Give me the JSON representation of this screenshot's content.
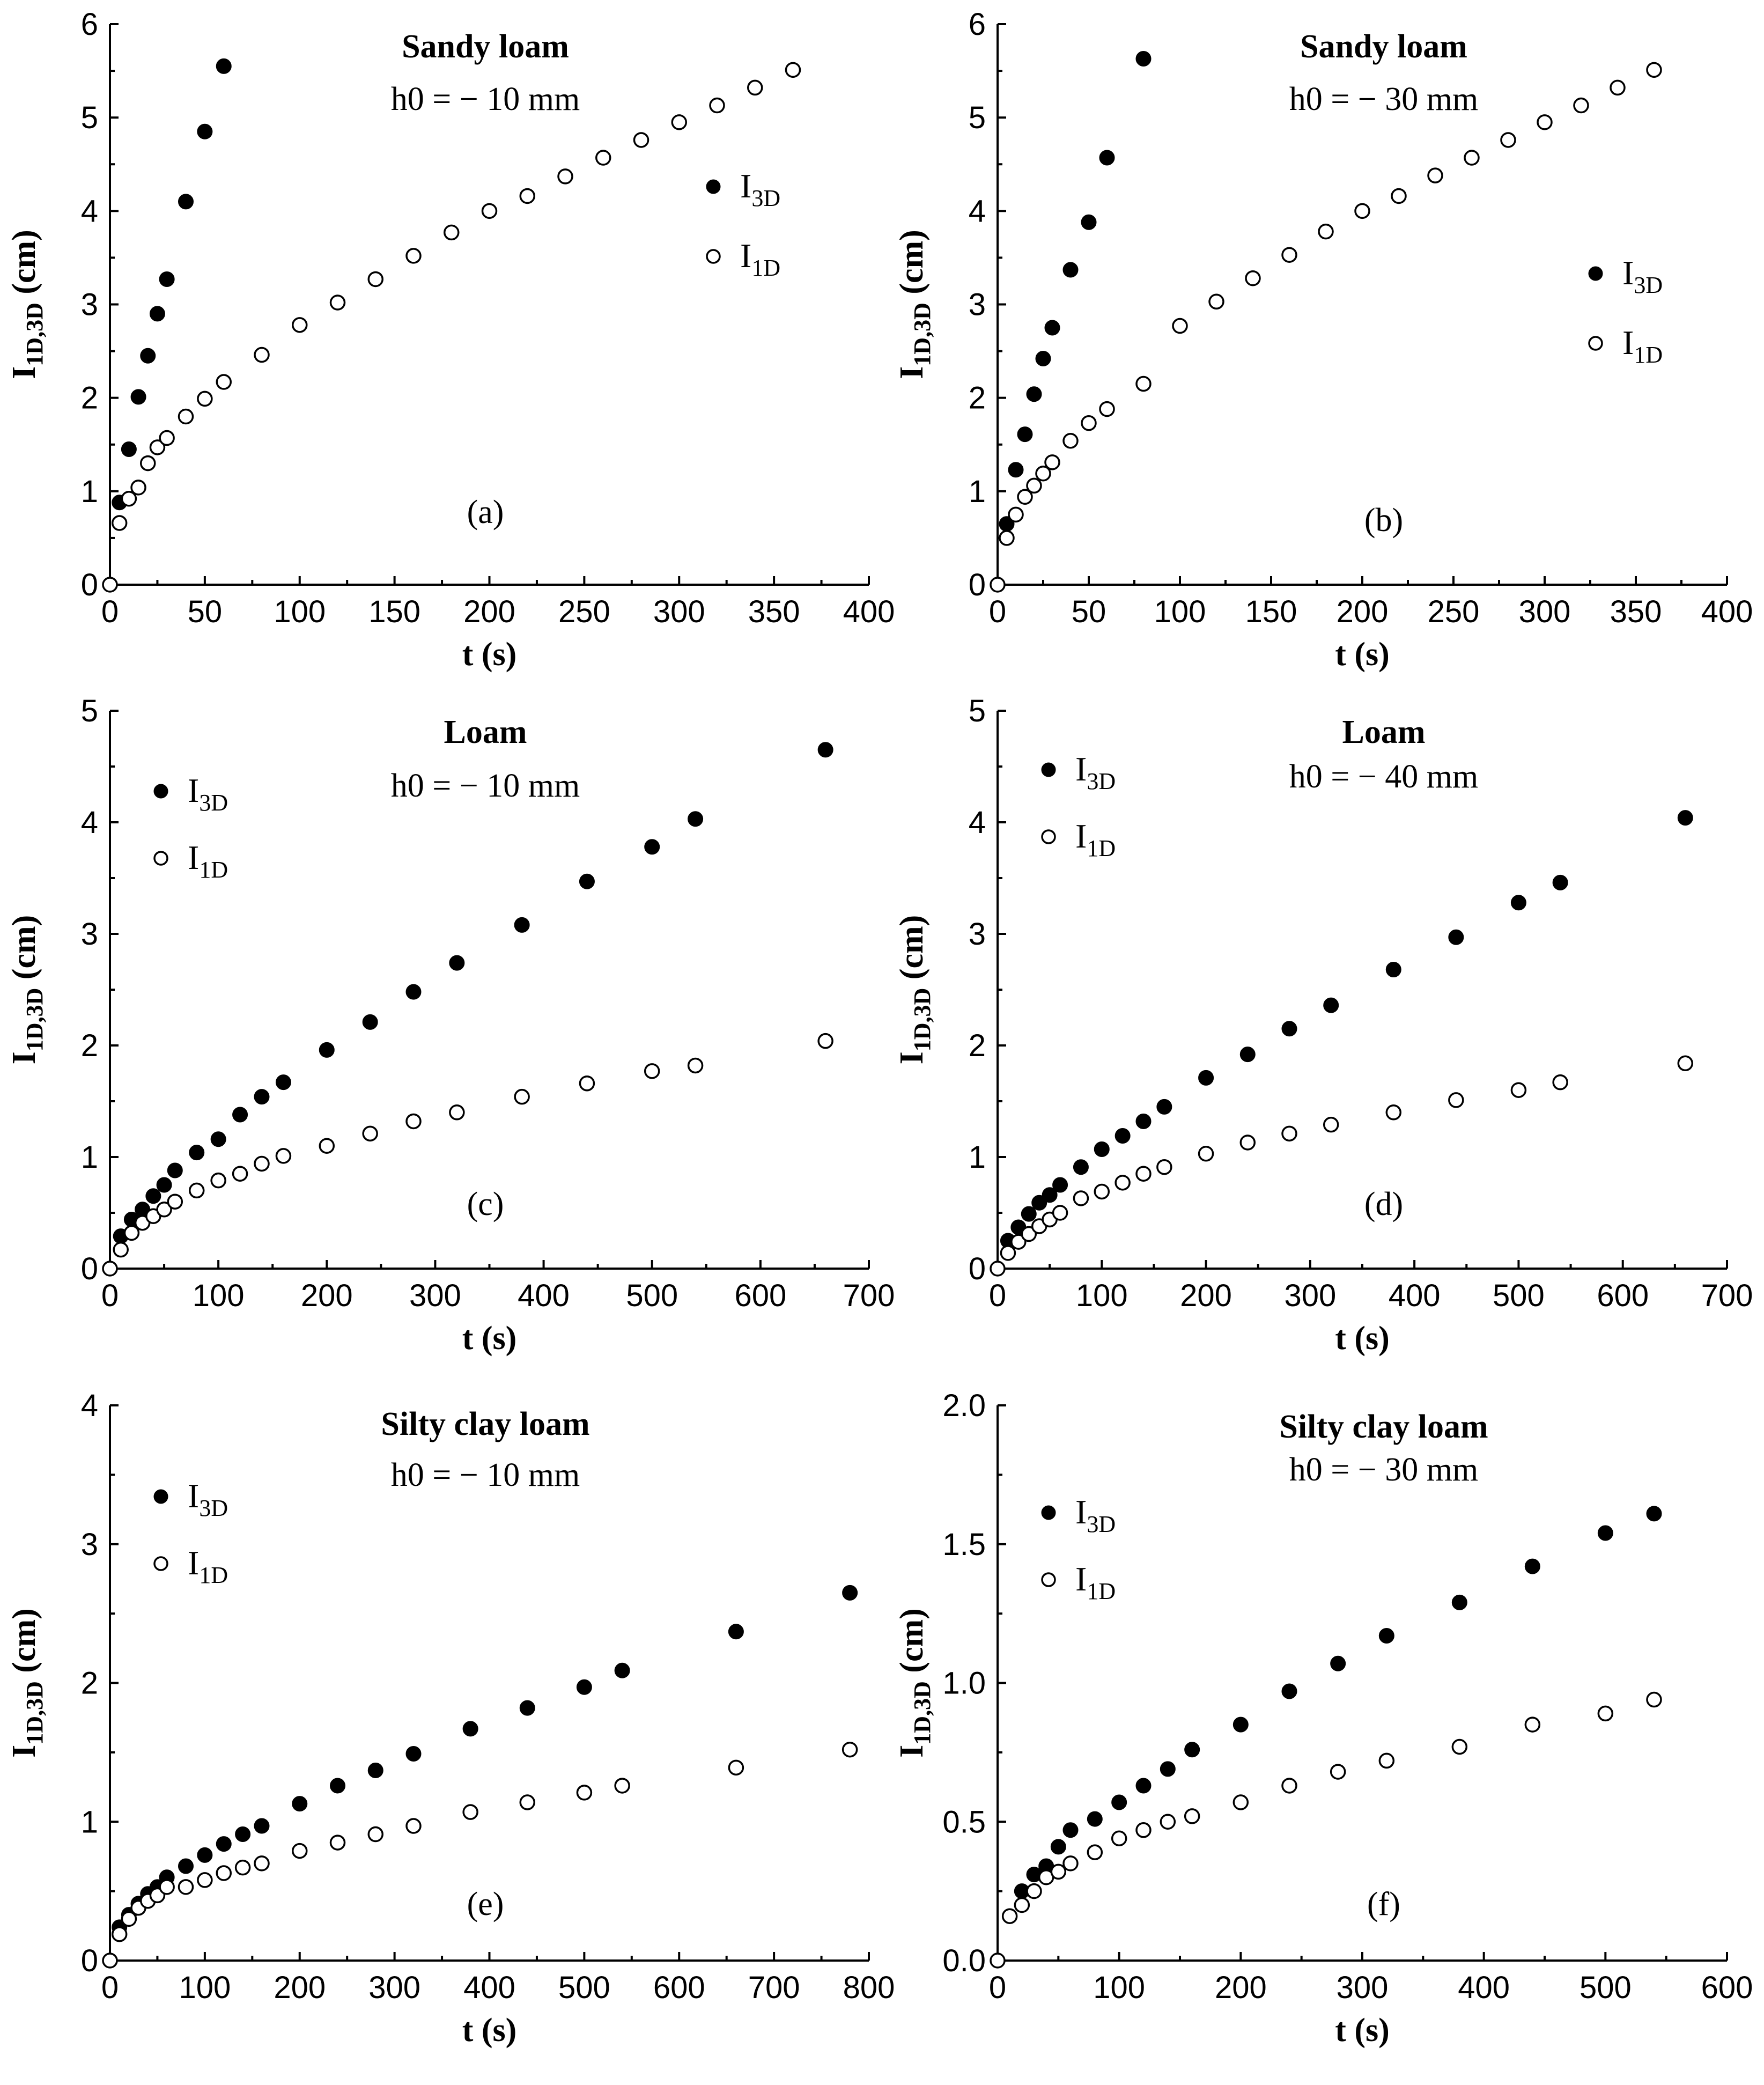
{
  "chart_data": [
    {
      "panel": "(a)",
      "type": "scatter",
      "title": "Sandy loam",
      "subtitle": "h0 = − 10 mm",
      "xlabel": "t (s)",
      "ylabel": {
        "main": "I",
        "sub": "1D,3D",
        "unit": " (cm)"
      },
      "xlim": [
        0,
        400
      ],
      "ylim": [
        0,
        6
      ],
      "xticks": [
        0,
        50,
        100,
        150,
        200,
        250,
        300,
        350,
        400
      ],
      "yticks": [
        0,
        1,
        2,
        3,
        4,
        5,
        6
      ],
      "ytick_labels": [
        "0",
        "1",
        "2",
        "3",
        "4",
        "5",
        "6"
      ],
      "legend_placement": "right",
      "series": [
        {
          "name": "I3D",
          "label_main": "I",
          "label_sub": "3D",
          "marker": "filled",
          "x": [
            5,
            10,
            15,
            20,
            25,
            30,
            40,
            50,
            60
          ],
          "y": [
            0.88,
            1.45,
            2.01,
            2.45,
            2.9,
            3.27,
            4.1,
            4.85,
            5.55
          ]
        },
        {
          "name": "I1D",
          "label_main": "I",
          "label_sub": "1D",
          "marker": "open",
          "x": [
            0,
            5,
            10,
            15,
            20,
            25,
            30,
            40,
            50,
            60,
            80,
            100,
            120,
            140,
            160,
            180,
            200,
            220,
            240,
            260,
            280,
            300,
            320,
            340,
            360
          ],
          "y": [
            0,
            0.66,
            0.92,
            1.04,
            1.3,
            1.47,
            1.57,
            1.8,
            1.99,
            2.17,
            2.46,
            2.78,
            3.02,
            3.27,
            3.52,
            3.77,
            4.0,
            4.16,
            4.37,
            4.57,
            4.76,
            4.95,
            5.13,
            5.32,
            5.51
          ]
        }
      ]
    },
    {
      "panel": "(b)",
      "type": "scatter",
      "title": "Sandy loam",
      "subtitle": "h0 = − 30 mm",
      "xlabel": "t (s)",
      "ylabel": {
        "main": "I",
        "sub": "1D,3D",
        "unit": " (cm)"
      },
      "xlim": [
        0,
        400
      ],
      "ylim": [
        0,
        6
      ],
      "xticks": [
        0,
        50,
        100,
        150,
        200,
        250,
        300,
        350,
        400
      ],
      "yticks": [
        0,
        1,
        2,
        3,
        4,
        5,
        6
      ],
      "ytick_labels": [
        "0",
        "1",
        "2",
        "3",
        "4",
        "5",
        "6"
      ],
      "legend_placement": "right",
      "series": [
        {
          "name": "I3D",
          "label_main": "I",
          "label_sub": "3D",
          "marker": "filled",
          "x": [
            5,
            10,
            15,
            20,
            25,
            30,
            40,
            50,
            60,
            80
          ],
          "y": [
            0.65,
            1.23,
            1.61,
            2.04,
            2.42,
            2.75,
            3.37,
            3.88,
            4.57,
            5.63
          ]
        },
        {
          "name": "I1D",
          "label_main": "I",
          "label_sub": "1D",
          "marker": "open",
          "x": [
            0,
            5,
            10,
            15,
            20,
            25,
            30,
            40,
            50,
            60,
            80,
            100,
            120,
            140,
            160,
            180,
            200,
            220,
            240,
            260,
            280,
            300,
            320,
            340,
            360
          ],
          "y": [
            0,
            0.5,
            0.75,
            0.94,
            1.06,
            1.19,
            1.31,
            1.54,
            1.73,
            1.88,
            2.15,
            2.77,
            3.03,
            3.28,
            3.53,
            3.78,
            4.0,
            4.16,
            4.38,
            4.57,
            4.76,
            4.95,
            5.13,
            5.32,
            5.51
          ]
        }
      ]
    },
    {
      "panel": "(c)",
      "type": "scatter",
      "title": "Loam",
      "subtitle": "h0 = − 10 mm",
      "xlabel": "t (s)",
      "ylabel": {
        "main": "I",
        "sub": "1D,3D",
        "unit": " (cm)"
      },
      "xlim": [
        0,
        700
      ],
      "ylim": [
        0,
        5
      ],
      "xticks": [
        0,
        100,
        200,
        300,
        400,
        500,
        600,
        700
      ],
      "yticks": [
        0,
        1,
        2,
        3,
        4,
        5
      ],
      "ytick_labels": [
        "0",
        "1",
        "2",
        "3",
        "4",
        "5"
      ],
      "legend_placement": "top-left",
      "series": [
        {
          "name": "I3D",
          "label_main": "I",
          "label_sub": "3D",
          "marker": "filled",
          "x": [
            10,
            20,
            30,
            40,
            50,
            60,
            80,
            100,
            120,
            140,
            160,
            200,
            240,
            280,
            320,
            380,
            440,
            500,
            540,
            660
          ],
          "y": [
            0.29,
            0.44,
            0.53,
            0.65,
            0.75,
            0.88,
            1.04,
            1.16,
            1.38,
            1.54,
            1.67,
            1.96,
            2.21,
            2.48,
            2.74,
            3.08,
            3.47,
            3.78,
            4.03,
            4.65
          ]
        },
        {
          "name": "I1D",
          "label_main": "I",
          "label_sub": "1D",
          "marker": "open",
          "x": [
            0,
            10,
            20,
            30,
            40,
            50,
            60,
            80,
            100,
            120,
            140,
            160,
            200,
            240,
            280,
            320,
            380,
            440,
            500,
            540,
            660
          ],
          "y": [
            0,
            0.17,
            0.32,
            0.41,
            0.47,
            0.53,
            0.6,
            0.7,
            0.79,
            0.85,
            0.94,
            1.01,
            1.1,
            1.21,
            1.32,
            1.4,
            1.54,
            1.66,
            1.77,
            1.82,
            2.04
          ]
        }
      ]
    },
    {
      "panel": "(d)",
      "type": "scatter",
      "title": "Loam",
      "subtitle": "h0 = − 40 mm",
      "xlabel": "t (s)",
      "ylabel": {
        "main": "I",
        "sub": "1D,3D",
        "unit": " (cm)"
      },
      "xlim": [
        0,
        700
      ],
      "ylim": [
        0,
        5
      ],
      "xticks": [
        0,
        100,
        200,
        300,
        400,
        500,
        600,
        700
      ],
      "yticks": [
        0,
        1,
        2,
        3,
        4,
        5
      ],
      "ytick_labels": [
        "0",
        "1",
        "2",
        "3",
        "4",
        "5"
      ],
      "legend_placement": "top-left",
      "series": [
        {
          "name": "I3D",
          "label_main": "I",
          "label_sub": "3D",
          "marker": "filled",
          "x": [
            10,
            20,
            30,
            40,
            50,
            60,
            80,
            100,
            120,
            140,
            160,
            200,
            240,
            280,
            320,
            380,
            440,
            500,
            540,
            660
          ],
          "y": [
            0.25,
            0.37,
            0.49,
            0.59,
            0.66,
            0.75,
            0.91,
            1.07,
            1.19,
            1.32,
            1.45,
            1.71,
            1.92,
            2.15,
            2.36,
            2.68,
            2.97,
            3.28,
            3.46,
            4.04
          ]
        },
        {
          "name": "I1D",
          "label_main": "I",
          "label_sub": "1D",
          "marker": "open",
          "x": [
            0,
            10,
            20,
            30,
            40,
            50,
            60,
            80,
            100,
            120,
            140,
            160,
            200,
            240,
            280,
            320,
            380,
            440,
            500,
            540,
            660
          ],
          "y": [
            0,
            0.14,
            0.24,
            0.31,
            0.38,
            0.44,
            0.5,
            0.63,
            0.69,
            0.77,
            0.85,
            0.91,
            1.03,
            1.13,
            1.21,
            1.29,
            1.4,
            1.51,
            1.6,
            1.67,
            1.84
          ]
        }
      ]
    },
    {
      "panel": "(e)",
      "type": "scatter",
      "title": "Silty clay loam",
      "subtitle": "h0 = − 10 mm",
      "xlabel": "t (s)",
      "ylabel": {
        "main": "I",
        "sub": "1D,3D",
        "unit": " (cm)"
      },
      "xlim": [
        0,
        800
      ],
      "ylim": [
        0,
        4
      ],
      "xticks": [
        0,
        100,
        200,
        300,
        400,
        500,
        600,
        700,
        800
      ],
      "yticks": [
        0,
        1,
        2,
        3,
        4
      ],
      "ytick_labels": [
        "0",
        "1",
        "2",
        "3",
        "4"
      ],
      "legend_placement": "top-left",
      "series": [
        {
          "name": "I3D",
          "label_main": "I",
          "label_sub": "3D",
          "marker": "filled",
          "x": [
            10,
            20,
            30,
            40,
            50,
            60,
            80,
            100,
            120,
            140,
            160,
            200,
            240,
            280,
            320,
            380,
            440,
            500,
            540,
            660,
            780
          ],
          "y": [
            0.24,
            0.33,
            0.41,
            0.48,
            0.53,
            0.6,
            0.68,
            0.76,
            0.84,
            0.91,
            0.97,
            1.13,
            1.26,
            1.37,
            1.49,
            1.67,
            1.82,
            1.97,
            2.09,
            2.37,
            2.65
          ]
        },
        {
          "name": "I1D",
          "label_main": "I",
          "label_sub": "1D",
          "marker": "open",
          "x": [
            0,
            10,
            20,
            30,
            40,
            50,
            60,
            80,
            100,
            120,
            140,
            160,
            200,
            240,
            280,
            320,
            380,
            440,
            500,
            540,
            660,
            780
          ],
          "y": [
            0,
            0.19,
            0.3,
            0.38,
            0.43,
            0.47,
            0.53,
            0.53,
            0.58,
            0.63,
            0.67,
            0.7,
            0.79,
            0.85,
            0.91,
            0.97,
            1.07,
            1.14,
            1.21,
            1.26,
            1.39,
            1.52
          ]
        }
      ]
    },
    {
      "panel": "(f)",
      "type": "scatter",
      "title": "Silty clay loam",
      "subtitle": "h0 = − 30 mm",
      "xlabel": "t (s)",
      "ylabel": {
        "main": "I",
        "sub": "1D,3D",
        "unit": " (cm)"
      },
      "xlim": [
        0,
        600
      ],
      "ylim": [
        0,
        2.0
      ],
      "xticks": [
        0,
        100,
        200,
        300,
        400,
        500,
        600
      ],
      "yticks": [
        0,
        0.5,
        1.0,
        1.5,
        2.0
      ],
      "ytick_labels": [
        "0.0",
        "0.5",
        "1.0",
        "1.5",
        "2.0"
      ],
      "legend_placement": "top-left",
      "series": [
        {
          "name": "I3D",
          "label_main": "I",
          "label_sub": "3D",
          "marker": "filled",
          "x": [
            20,
            30,
            40,
            50,
            60,
            80,
            100,
            120,
            140,
            160,
            200,
            240,
            280,
            320,
            380,
            440,
            500,
            540
          ],
          "y": [
            0.25,
            0.31,
            0.34,
            0.41,
            0.47,
            0.51,
            0.57,
            0.63,
            0.69,
            0.76,
            0.85,
            0.97,
            1.07,
            1.17,
            1.29,
            1.42,
            1.54,
            1.61
          ]
        },
        {
          "name": "I1D",
          "label_main": "I",
          "label_sub": "1D",
          "marker": "open",
          "x": [
            0,
            10,
            20,
            30,
            40,
            50,
            60,
            80,
            100,
            120,
            140,
            160,
            200,
            240,
            280,
            320,
            380,
            440,
            500,
            540
          ],
          "y": [
            0,
            0.16,
            0.2,
            0.25,
            0.3,
            0.32,
            0.35,
            0.39,
            0.44,
            0.47,
            0.5,
            0.52,
            0.57,
            0.63,
            0.68,
            0.72,
            0.77,
            0.85,
            0.89,
            0.94
          ]
        }
      ]
    }
  ]
}
